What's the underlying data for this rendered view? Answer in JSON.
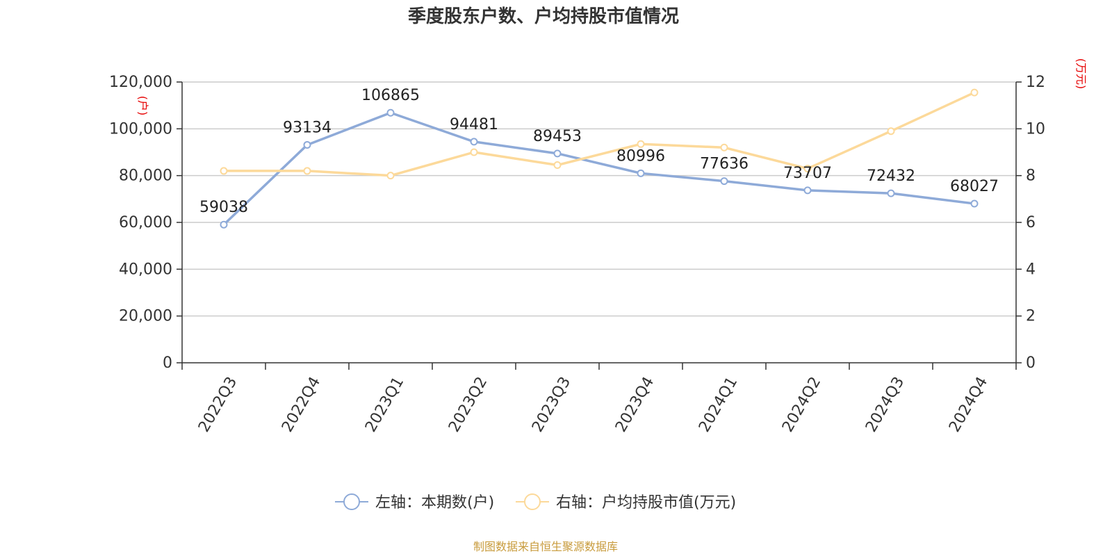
{
  "chart_data": {
    "type": "line",
    "title": "季度股东户数、户均持股市值情况",
    "categories": [
      "2022Q3",
      "2022Q4",
      "2023Q1",
      "2023Q2",
      "2023Q3",
      "2023Q4",
      "2024Q1",
      "2024Q2",
      "2024Q3",
      "2024Q4"
    ],
    "left_axis": {
      "unit": "(户)",
      "ylim": [
        0,
        120000
      ],
      "ticks": [
        0,
        20000,
        40000,
        60000,
        80000,
        100000,
        120000
      ],
      "tick_labels": [
        "0",
        "20,000",
        "40,000",
        "60,000",
        "80,000",
        "100,000",
        "120,000"
      ]
    },
    "right_axis": {
      "unit": "(万元)",
      "ylim": [
        0,
        12
      ],
      "ticks": [
        0,
        2,
        4,
        6,
        8,
        10,
        12
      ],
      "tick_labels": [
        "0",
        "2",
        "4",
        "6",
        "8",
        "10",
        "12"
      ]
    },
    "series": [
      {
        "name": "左轴：本期数(户)",
        "axis": "left",
        "color": "#8eaad8",
        "values": [
          59038,
          93134,
          106865,
          94481,
          89453,
          80996,
          77636,
          73707,
          72432,
          68027
        ],
        "labels": [
          "59038",
          "93134",
          "106865",
          "94481",
          "89453",
          "80996",
          "77636",
          "73707",
          "72432",
          "68027"
        ]
      },
      {
        "name": "右轴：户均持股市值(万元)",
        "axis": "right",
        "color": "#fcd99a",
        "values": [
          8.2,
          8.2,
          8.0,
          9.0,
          8.45,
          9.35,
          9.2,
          8.3,
          9.9,
          11.55
        ]
      }
    ],
    "grid": true,
    "legend": "bottom-center"
  },
  "source_text": "制图数据来自恒生聚源数据库"
}
